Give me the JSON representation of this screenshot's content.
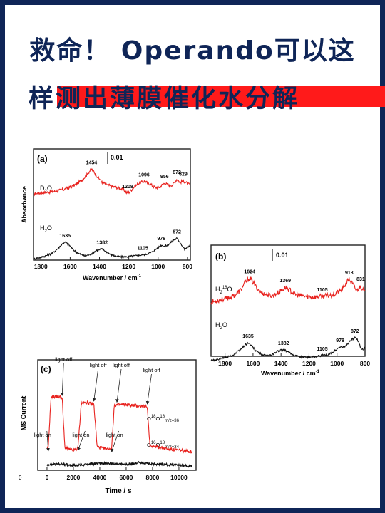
{
  "header": {
    "title_line1": "救命！ Operando可以这",
    "title_line2": "样测出薄膜催化水分解"
  },
  "colors": {
    "frame": "#0f2557",
    "highlight": "#ff1a1a",
    "red_trace": "#e8231f",
    "black_trace": "#111111"
  },
  "chart_data": [
    {
      "type": "line",
      "panel_label": "(a)",
      "scale_bar_label": "0.01",
      "xlabel": "Wavenumber / cm",
      "xlabel_sup": "-1",
      "ylabel": "Absorbance",
      "xlim": [
        1850,
        780
      ],
      "x_reversed": true,
      "xticks": [
        "1800",
        "1600",
        "1400",
        "1200",
        "1000",
        "800"
      ],
      "xtick_values": [
        1800,
        1600,
        1400,
        1200,
        1000,
        800
      ],
      "series": [
        {
          "name": "D₂O",
          "color": "#e8231f",
          "peak_labels": [
            "1454",
            "1208",
            "1096",
            "956",
            "872",
            "829"
          ],
          "x": [
            1850,
            1780,
            1700,
            1640,
            1580,
            1530,
            1490,
            1470,
            1454,
            1440,
            1420,
            1380,
            1340,
            1300,
            1260,
            1230,
            1208,
            1190,
            1160,
            1130,
            1096,
            1060,
            1020,
            990,
            956,
            930,
            900,
            872,
            850,
            829,
            800,
            780
          ],
          "y": [
            0.0,
            0.2,
            0.45,
            0.8,
            1.4,
            2.2,
            3.2,
            3.9,
            4.3,
            4.0,
            3.2,
            2.0,
            1.5,
            1.2,
            1.0,
            0.6,
            0.1,
            0.5,
            1.3,
            1.9,
            2.2,
            1.8,
            1.1,
            1.2,
            1.9,
            1.5,
            1.6,
            2.6,
            2.0,
            2.3,
            1.8,
            1.5
          ]
        },
        {
          "name": "H₂O",
          "color": "#111111",
          "peak_labels": [
            "1635",
            "1382",
            "1105",
            "978",
            "872"
          ],
          "x": [
            1850,
            1780,
            1720,
            1680,
            1650,
            1635,
            1610,
            1580,
            1540,
            1500,
            1460,
            1420,
            1382,
            1350,
            1320,
            1280,
            1240,
            1200,
            1160,
            1130,
            1105,
            1070,
            1040,
            1010,
            978,
            950,
            920,
            895,
            872,
            850,
            820,
            800,
            780
          ],
          "y": [
            -4.4,
            -4.0,
            -3.4,
            -2.5,
            -1.7,
            -1.5,
            -1.9,
            -2.8,
            -3.5,
            -3.9,
            -3.6,
            -2.9,
            -2.7,
            -3.2,
            -3.7,
            -4.0,
            -4.1,
            -4.0,
            -3.9,
            -3.8,
            -3.7,
            -3.5,
            -3.2,
            -2.6,
            -2.0,
            -2.2,
            -1.7,
            -1.1,
            -0.8,
            -1.5,
            -2.7,
            -2.4,
            -1.9
          ]
        }
      ]
    },
    {
      "type": "line",
      "panel_label": "(b)",
      "scale_bar_label": "0.01",
      "xlabel": "Wavenumber / cm",
      "xlabel_sup": "-1",
      "ylabel": "Absorbance",
      "xlim": [
        1900,
        800
      ],
      "x_reversed": true,
      "xticks": [
        "1800",
        "1600",
        "1400",
        "1200",
        "1000",
        "800"
      ],
      "xtick_values": [
        1800,
        1600,
        1400,
        1200,
        1000,
        800
      ],
      "series": [
        {
          "name": "H₂¹⁸O",
          "color": "#e8231f",
          "peak_labels": [
            "1624",
            "1369",
            "1105",
            "913",
            "831"
          ],
          "x": [
            1900,
            1850,
            1800,
            1760,
            1720,
            1690,
            1660,
            1640,
            1624,
            1605,
            1580,
            1550,
            1500,
            1460,
            1420,
            1390,
            1369,
            1340,
            1300,
            1260,
            1220,
            1180,
            1140,
            1105,
            1060,
            1020,
            980,
            950,
            925,
            913,
            890,
            860,
            845,
            831,
            815,
            800
          ],
          "y": [
            -0.5,
            -0.2,
            0.1,
            0.4,
            0.9,
            1.6,
            2.8,
            3.4,
            3.7,
            3.2,
            2.2,
            1.3,
            0.8,
            0.6,
            1.2,
            1.7,
            2.1,
            1.6,
            0.9,
            0.6,
            0.5,
            0.4,
            0.45,
            0.5,
            0.65,
            0.9,
            1.4,
            2.2,
            3.2,
            3.5,
            2.7,
            1.5,
            2.0,
            2.4,
            1.6,
            1.2
          ]
        },
        {
          "name": "H₂O",
          "color": "#111111",
          "peak_labels": [
            "1635",
            "1382",
            "1105",
            "978",
            "872"
          ],
          "x": [
            1900,
            1850,
            1800,
            1740,
            1690,
            1660,
            1635,
            1610,
            1580,
            1540,
            1500,
            1460,
            1420,
            1382,
            1350,
            1310,
            1270,
            1230,
            1190,
            1150,
            1105,
            1070,
            1040,
            1010,
            978,
            950,
            925,
            900,
            872,
            850,
            830,
            810,
            800
          ],
          "y": [
            -4.5,
            -4.3,
            -4.0,
            -3.5,
            -2.6,
            -1.8,
            -1.4,
            -1.9,
            -2.8,
            -3.4,
            -3.7,
            -3.4,
            -2.8,
            -2.6,
            -3.0,
            -3.5,
            -3.8,
            -3.9,
            -3.9,
            -3.8,
            -3.6,
            -3.5,
            -3.2,
            -2.7,
            -2.1,
            -2.2,
            -1.6,
            -0.9,
            -0.5,
            -1.0,
            -2.3,
            -2.6,
            -2.2
          ]
        }
      ]
    },
    {
      "type": "line",
      "panel_label": "(c)",
      "xlabel": "Time / s",
      "ylabel": "MS Current",
      "xlim": [
        -700,
        11300
      ],
      "xticks": [
        "0",
        "2000",
        "4000",
        "6000",
        "8000",
        "10000"
      ],
      "xtick_values": [
        0,
        2000,
        4000,
        6000,
        8000,
        10000
      ],
      "left_tick_label": "0",
      "annotations_on": [
        "light on",
        "light on",
        "light on"
      ],
      "annotations_on_x": [
        100,
        2350,
        4900
      ],
      "annotations_off": [
        "light off",
        "light off",
        "light off",
        "light off"
      ],
      "annotations_off_x": [
        1150,
        3550,
        5300,
        7600
      ],
      "series": [
        {
          "name": "O¹⁸O¹⁸ m/z=36",
          "label_main": "O",
          "label_sup1": "18",
          "label_mid": "O",
          "label_sup2": "18",
          "label_sub": "m/z=36",
          "color": "#e8231f",
          "x": [
            0,
            100,
            300,
            700,
            1000,
            1150,
            1350,
            1700,
            2000,
            2300,
            2350,
            2600,
            3000,
            3400,
            3550,
            3800,
            4200,
            4600,
            4900,
            5100,
            5400,
            6000,
            6600,
            7200,
            7600,
            7800,
            8500,
            9500,
            10500,
            11000
          ],
          "y": [
            1.2,
            1.5,
            8.5,
            8.7,
            8.6,
            8.4,
            1.5,
            1.2,
            1.1,
            1.3,
            1.6,
            7.7,
            7.8,
            7.6,
            7.6,
            1.6,
            1.4,
            1.3,
            1.4,
            7.4,
            7.5,
            7.5,
            7.4,
            7.3,
            7.2,
            1.8,
            1.5,
            1.2,
            1.0,
            0.9
          ]
        },
        {
          "name": "O¹⁶O¹⁸ m/z=34",
          "label_main": "O",
          "label_sup1": "16",
          "label_mid": "O",
          "label_sup2": "18",
          "label_sub": "m/z=34",
          "color": "#111111",
          "x": [
            0,
            1000,
            2000,
            3000,
            4000,
            5000,
            6000,
            7000,
            8000,
            9000,
            10000,
            11000
          ],
          "y": [
            -1.0,
            -0.8,
            -1.0,
            -0.9,
            -0.7,
            -0.8,
            -0.9,
            -0.6,
            -0.8,
            -0.9,
            -1.0,
            -1.1
          ]
        }
      ]
    }
  ]
}
